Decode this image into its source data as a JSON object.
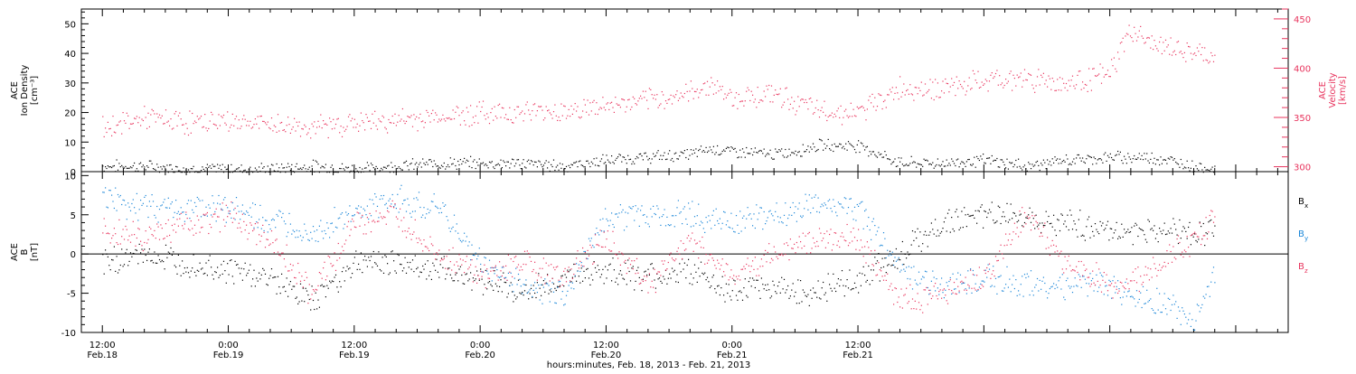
{
  "colors": {
    "black": "#000000",
    "pink": "#e8355e",
    "blue": "#1a86d8"
  },
  "chart_data": [
    {
      "type": "scatter",
      "panel": "ace-plasma",
      "ylabel_left": [
        "ACE",
        "Ion Density",
        "[cm⁻³]"
      ],
      "ylabel_right": [
        "ACE",
        "Velocity",
        "[km/s]"
      ],
      "ylim_left": [
        0,
        55
      ],
      "yticks_left": [
        "0",
        "10",
        "20",
        "30",
        "40",
        "50"
      ],
      "ylim_right": [
        295,
        460
      ],
      "yticks_right": [
        "300",
        "350",
        "400",
        "450"
      ],
      "grid": false,
      "series": [
        {
          "axis": "left",
          "color": "black",
          "x": [
            0,
            4,
            8,
            12,
            16,
            20,
            24,
            28,
            32,
            36,
            40,
            44,
            48,
            52,
            56,
            58,
            60,
            64,
            66,
            68,
            72,
            76,
            80,
            84,
            88,
            92,
            96,
            100,
            104,
            106
          ],
          "values": [
            2,
            2,
            1,
            1,
            1,
            2,
            1,
            2,
            3,
            3,
            3,
            2,
            4,
            5,
            6,
            8,
            7,
            6,
            7,
            9,
            9,
            3,
            3,
            4,
            2,
            4,
            5,
            5,
            2,
            1
          ]
        },
        {
          "axis": "right",
          "color": "pink",
          "x": [
            0,
            4,
            8,
            12,
            16,
            20,
            24,
            28,
            32,
            36,
            40,
            44,
            48,
            52,
            56,
            58,
            60,
            64,
            66,
            68,
            72,
            76,
            80,
            84,
            88,
            92,
            96,
            98,
            100,
            104,
            106
          ],
          "values": [
            340,
            350,
            345,
            347,
            343,
            340,
            345,
            347,
            351,
            355,
            356,
            357,
            362,
            367,
            375,
            385,
            370,
            375,
            366,
            357,
            355,
            380,
            380,
            387,
            390,
            385,
            395,
            440,
            425,
            415,
            410
          ]
        }
      ]
    },
    {
      "type": "scatter",
      "panel": "ace-magnetic-field",
      "ylabel_left": [
        "ACE",
        "B",
        "[nT]"
      ],
      "ylim": [
        -10,
        10.5
      ],
      "yticks": [
        "-10",
        "-5",
        "0",
        "5",
        "10"
      ],
      "zero_line": true,
      "grid": false,
      "legend": "right",
      "legend_entries": [
        {
          "main": "B",
          "sub": "x",
          "color": "black"
        },
        {
          "main": "B",
          "sub": "y",
          "color": "blue"
        },
        {
          "main": "B",
          "sub": "z",
          "color": "pink"
        }
      ],
      "series": [
        {
          "name": "Bx",
          "color": "black",
          "x": [
            0,
            4,
            8,
            12,
            16,
            20,
            24,
            28,
            32,
            36,
            40,
            44,
            48,
            52,
            56,
            60,
            64,
            68,
            72,
            76,
            80,
            84,
            88,
            92,
            96,
            100,
            104,
            106
          ],
          "values": [
            -1,
            0,
            -1,
            -2,
            -3,
            -6,
            -1,
            -1,
            -2,
            -3,
            -5,
            -3,
            -2,
            -3,
            -2,
            -5,
            -4,
            -5,
            -3,
            0,
            4,
            5,
            5,
            4,
            3,
            3,
            3,
            3
          ]
        },
        {
          "name": "By",
          "color": "blue",
          "x": [
            0,
            4,
            8,
            12,
            16,
            20,
            24,
            28,
            32,
            36,
            40,
            44,
            48,
            52,
            56,
            60,
            64,
            68,
            72,
            76,
            80,
            84,
            88,
            92,
            96,
            100,
            104,
            106
          ],
          "values": [
            7,
            6,
            6,
            6,
            4,
            3,
            5,
            7,
            6,
            -1,
            -4,
            -5,
            5,
            5,
            5,
            4,
            5,
            6,
            6,
            -2,
            -4,
            -3,
            -4,
            -4,
            -4,
            -6,
            -8,
            -3
          ]
        },
        {
          "name": "Bz",
          "color": "pink",
          "x": [
            0,
            4,
            8,
            12,
            16,
            20,
            24,
            28,
            32,
            36,
            40,
            44,
            48,
            52,
            56,
            60,
            64,
            68,
            72,
            76,
            80,
            84,
            88,
            92,
            96,
            100,
            104,
            106
          ],
          "values": [
            3,
            2,
            4,
            5,
            2,
            -5,
            4,
            5,
            0,
            -3,
            -1,
            -3,
            2,
            -4,
            2,
            -3,
            0,
            2,
            2,
            -6,
            -5,
            -3,
            5,
            -1,
            -4,
            -2,
            2,
            5
          ]
        }
      ]
    }
  ],
  "x_axis": {
    "xlim_hours": [
      -2,
      113
    ],
    "xlabel": "hours:minutes, Feb. 18, 2013 - Feb. 21, 2013",
    "ticks": [
      {
        "x": 0,
        "time": "12:00",
        "date": "Feb.18"
      },
      {
        "x": 12,
        "time": "0:00",
        "date": "Feb.19"
      },
      {
        "x": 24,
        "time": "12:00",
        "date": "Feb.19"
      },
      {
        "x": 36,
        "time": "0:00",
        "date": "Feb.20"
      },
      {
        "x": 48,
        "time": "12:00",
        "date": "Feb.20"
      },
      {
        "x": 60,
        "time": "0:00",
        "date": "Feb.21"
      },
      {
        "x": 72,
        "time": "12:00",
        "date": "Feb.21"
      }
    ]
  }
}
